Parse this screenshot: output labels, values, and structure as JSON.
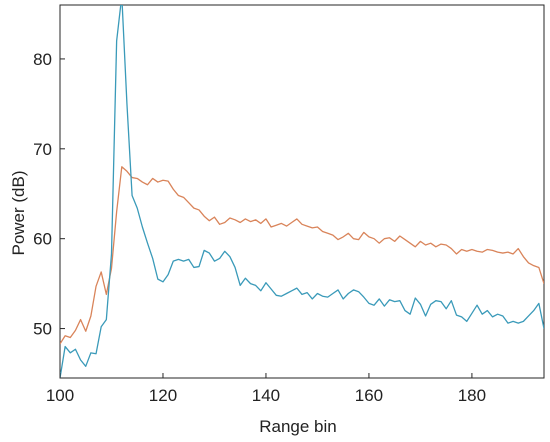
{
  "chart_data": {
    "type": "line",
    "xlabel": "Range bin",
    "ylabel": "Power (dB)",
    "xlim": [
      100,
      194
    ],
    "ylim": [
      44.5,
      86
    ],
    "xticks": [
      100,
      120,
      140,
      160,
      180
    ],
    "yticks": [
      50,
      60,
      70,
      80
    ],
    "grid": false,
    "colors": {
      "series_1": "#d9845a",
      "series_2": "#3a9ab9",
      "axis": "#262626"
    },
    "x": [
      100,
      101,
      102,
      103,
      104,
      105,
      106,
      107,
      108,
      109,
      110,
      111,
      112,
      113,
      114,
      115,
      116,
      117,
      118,
      119,
      120,
      121,
      122,
      123,
      124,
      125,
      126,
      127,
      128,
      129,
      130,
      131,
      132,
      133,
      134,
      135,
      136,
      137,
      138,
      139,
      140,
      141,
      142,
      143,
      144,
      145,
      146,
      147,
      148,
      149,
      150,
      151,
      152,
      153,
      154,
      155,
      156,
      157,
      158,
      159,
      160,
      161,
      162,
      163,
      164,
      165,
      166,
      167,
      168,
      169,
      170,
      171,
      172,
      173,
      174,
      175,
      176,
      177,
      178,
      179,
      180,
      181,
      182,
      183,
      184,
      185,
      186,
      187,
      188,
      189,
      190,
      191,
      192,
      193,
      194
    ],
    "series": [
      {
        "values": [
          48.3,
          49.2,
          49.0,
          49.8,
          51.0,
          49.7,
          51.4,
          54.7,
          56.3,
          53.8,
          56.7,
          63.0,
          68.0,
          67.5,
          66.8,
          66.7,
          66.3,
          66.0,
          66.7,
          66.3,
          66.5,
          66.4,
          65.5,
          64.8,
          64.6,
          64.0,
          63.4,
          63.2,
          62.5,
          62.0,
          62.4,
          61.6,
          61.8,
          62.3,
          62.1,
          61.8,
          62.2,
          61.9,
          62.1,
          61.7,
          62.2,
          61.3,
          61.5,
          61.7,
          61.4,
          61.8,
          62.2,
          61.6,
          61.4,
          61.2,
          61.3,
          60.8,
          60.6,
          60.4,
          59.9,
          60.2,
          60.6,
          60.0,
          59.9,
          60.7,
          60.2,
          60.0,
          59.5,
          60.0,
          60.1,
          59.7,
          60.3,
          59.9,
          59.5,
          59.1,
          59.7,
          59.3,
          59.5,
          59.1,
          59.4,
          59.3,
          58.9,
          58.3,
          58.8,
          58.6,
          58.8,
          58.6,
          58.5,
          58.8,
          58.7,
          58.5,
          58.4,
          58.5,
          58.3,
          58.9,
          58.0,
          57.3,
          57.0,
          56.8,
          55.0
        ]
      },
      {
        "values": [
          44.5,
          48.0,
          47.3,
          47.7,
          46.5,
          45.8,
          47.3,
          47.2,
          50.2,
          51.0,
          58.3,
          82.0,
          87.0,
          75.0,
          64.8,
          63.4,
          61.3,
          59.5,
          57.8,
          55.5,
          55.2,
          56.0,
          57.5,
          57.7,
          57.5,
          57.7,
          56.8,
          56.9,
          58.7,
          58.4,
          57.5,
          57.8,
          58.6,
          58.0,
          56.8,
          54.8,
          55.6,
          55.0,
          54.8,
          54.2,
          55.1,
          54.4,
          53.7,
          53.6,
          53.9,
          54.2,
          54.5,
          53.8,
          54.0,
          53.3,
          53.9,
          53.6,
          53.5,
          53.9,
          54.3,
          53.3,
          53.9,
          54.3,
          54.1,
          53.5,
          52.8,
          52.6,
          53.3,
          52.5,
          53.2,
          53.0,
          53.1,
          52.0,
          51.6,
          53.4,
          52.7,
          51.4,
          52.7,
          53.1,
          53.0,
          52.2,
          53.1,
          51.5,
          51.3,
          50.8,
          51.7,
          52.6,
          51.6,
          52.0,
          51.3,
          51.6,
          51.4,
          50.6,
          50.8,
          50.6,
          50.8,
          51.4,
          52.0,
          52.8,
          50.0
        ]
      }
    ]
  }
}
